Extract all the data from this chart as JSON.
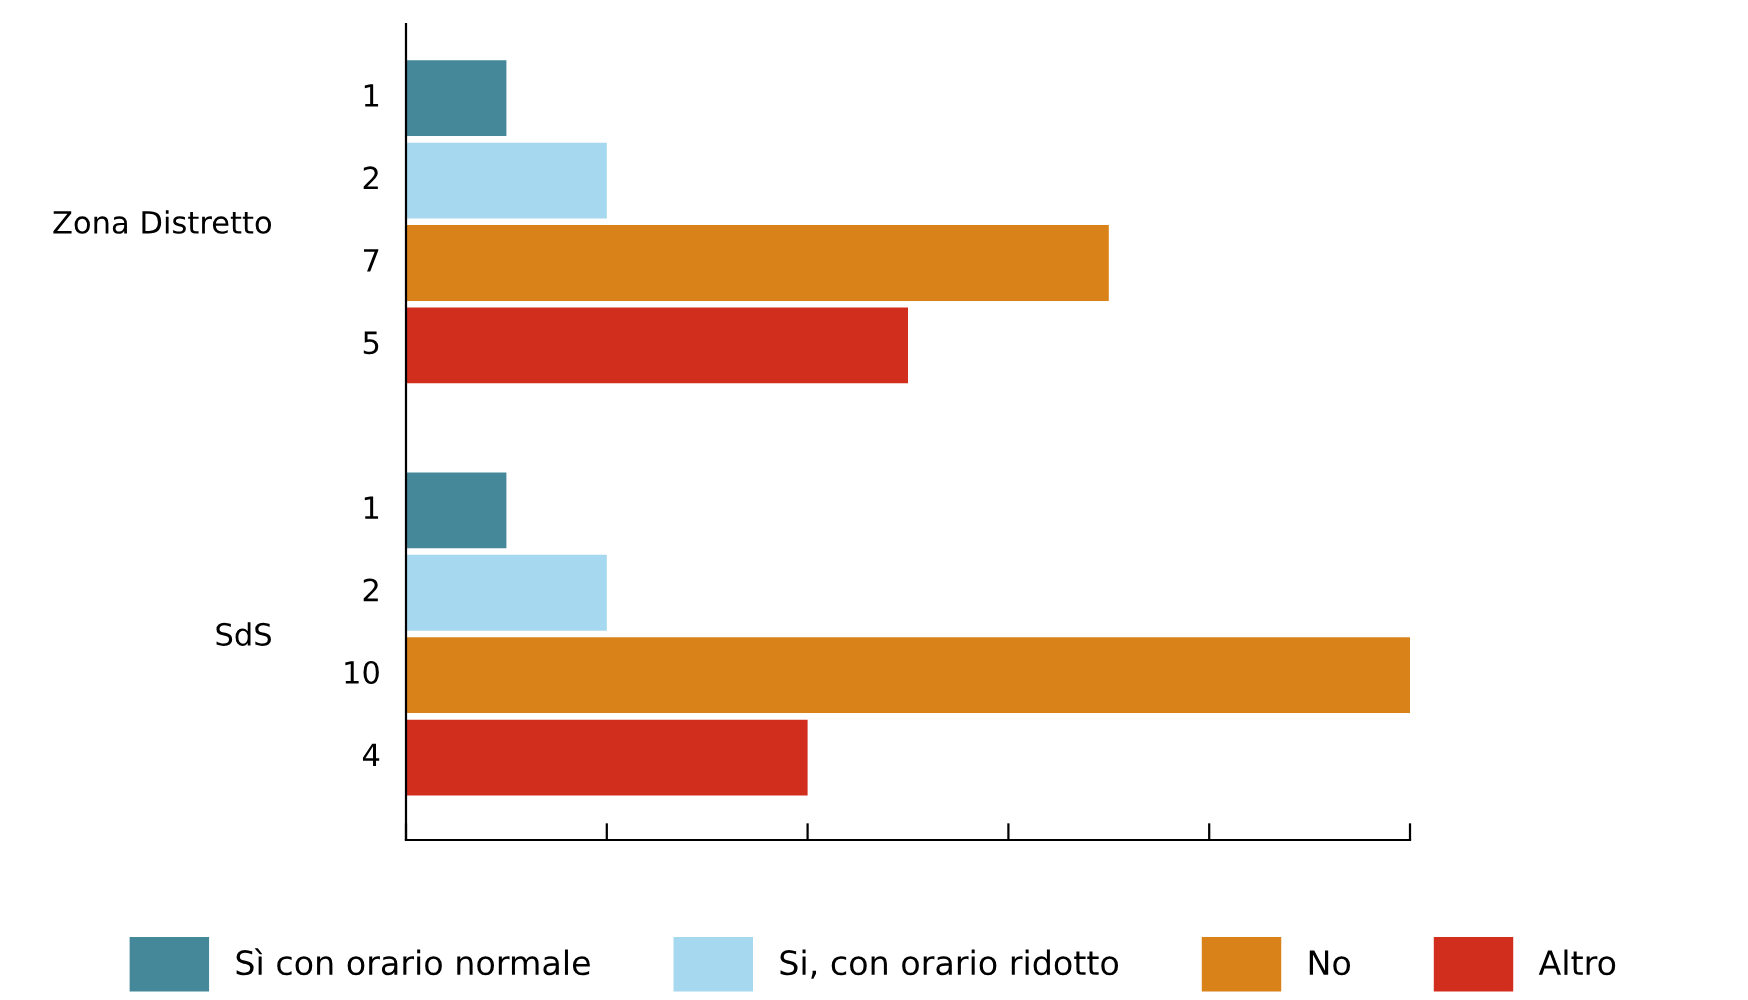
{
  "chart_data": {
    "type": "bar",
    "orientation": "horizontal",
    "categories": [
      "Zona Distretto",
      "SdS"
    ],
    "series": [
      {
        "name": "Sì con orario normale",
        "color": "#45889a",
        "values": [
          1,
          1
        ]
      },
      {
        "name": "Si, con orario ridotto",
        "color": "#a6d8f0",
        "values": [
          2,
          2
        ]
      },
      {
        "name": "No",
        "color": "#d9821a",
        "values": [
          7,
          10
        ]
      },
      {
        "name": "Altro",
        "color": "#d12e1e",
        "values": [
          5,
          4
        ]
      }
    ],
    "xlim": [
      0,
      10
    ],
    "xticks": [
      {
        "value": 0,
        "label": null
      },
      {
        "value": 2,
        "label": null
      },
      {
        "value": 4,
        "label": null
      },
      {
        "value": 6,
        "label": null
      },
      {
        "value": 8,
        "label": null
      },
      {
        "value": 10,
        "label": null
      }
    ],
    "tick_labels": "y",
    "data_labels": true,
    "grid": false,
    "legend": "bottom"
  }
}
